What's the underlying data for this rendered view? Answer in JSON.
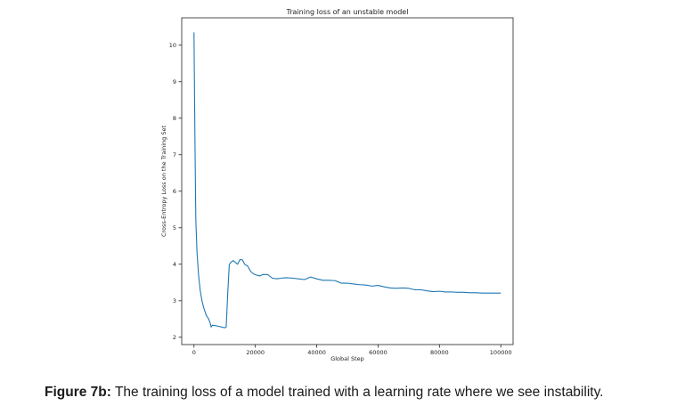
{
  "caption": {
    "label": "Figure 7b:",
    "text": " The training loss of a model trained with a learning rate where we see instability."
  },
  "chart_data": {
    "type": "line",
    "title": "Training loss of an unstable model",
    "xlabel": "Global Step",
    "ylabel": "Cross-Entropy Loss on the Training Set",
    "xlim": [
      -4000,
      104000
    ],
    "ylim": [
      1.8,
      10.75
    ],
    "xticks": [
      0,
      20000,
      40000,
      60000,
      80000,
      100000
    ],
    "yticks": [
      2,
      3,
      4,
      5,
      6,
      7,
      8,
      9,
      10
    ],
    "grid": false,
    "line_color": "#1f77b4",
    "series": [
      {
        "x": [
          0,
          300,
          600,
          1000,
          1500,
          2000,
          2600,
          3200,
          4000,
          4800,
          5300,
          5600,
          6000,
          7000,
          8000,
          9000,
          10000,
          10500,
          11000,
          11500,
          12000,
          12800,
          13500,
          14200,
          15000,
          15800,
          16500,
          17500,
          18500,
          19500,
          20500,
          21500,
          22500,
          24000,
          25500,
          27000,
          28500,
          30000,
          32000,
          34000,
          36000,
          38000,
          40000,
          42000,
          44000,
          46000,
          48000,
          50000,
          52000,
          54000,
          56000,
          58000,
          60000,
          62000,
          64000,
          66000,
          68000,
          70000,
          72000,
          74000,
          76000,
          78000,
          80000,
          82000,
          84000,
          86000,
          88000,
          90000,
          92000,
          94000,
          96000,
          98000,
          100000
        ],
        "y": [
          10.35,
          7.5,
          5.2,
          4.3,
          3.7,
          3.3,
          3.0,
          2.8,
          2.6,
          2.5,
          2.38,
          2.28,
          2.33,
          2.32,
          2.3,
          2.28,
          2.26,
          2.28,
          3.2,
          3.99,
          4.05,
          4.1,
          4.05,
          4.0,
          4.13,
          4.12,
          4.0,
          3.95,
          3.8,
          3.73,
          3.7,
          3.68,
          3.72,
          3.72,
          3.62,
          3.6,
          3.62,
          3.63,
          3.62,
          3.6,
          3.58,
          3.65,
          3.6,
          3.56,
          3.56,
          3.55,
          3.48,
          3.48,
          3.46,
          3.44,
          3.43,
          3.4,
          3.42,
          3.38,
          3.35,
          3.34,
          3.35,
          3.34,
          3.3,
          3.3,
          3.27,
          3.25,
          3.26,
          3.24,
          3.24,
          3.23,
          3.23,
          3.22,
          3.22,
          3.21,
          3.21,
          3.21,
          3.21
        ]
      }
    ]
  }
}
